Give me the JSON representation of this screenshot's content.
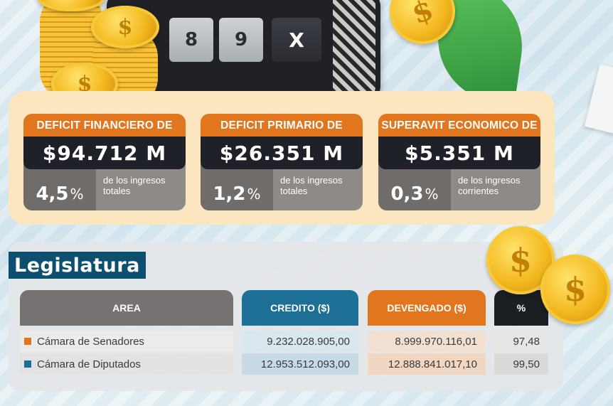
{
  "colors": {
    "orange": "#e2761f",
    "dark": "#1e2228",
    "gray": "#8e8b87",
    "blue": "#1d6f96",
    "title_blue": "#0c4f6e",
    "panel_cream": "#fce6bf"
  },
  "illustration": {
    "calc_keys": [
      "8",
      "9",
      "X"
    ],
    "coin_symbol": "$"
  },
  "summary": {
    "cards": [
      {
        "header": "DEFICIT FINANCIERO DE",
        "amount": "$94.712 M",
        "pct": "4,5",
        "pct_symbol": "%",
        "note": "de los ingresos totales"
      },
      {
        "header": "DEFICIT PRIMARIO DE",
        "amount": "$26.351 M",
        "pct": "1,2",
        "pct_symbol": "%",
        "note": "de los ingresos totales"
      },
      {
        "header": "SUPERAVIT ECONOMICO DE",
        "amount": "$5.351 M",
        "pct": "0,3",
        "pct_symbol": "%",
        "note": "de los ingresos corrientes"
      }
    ]
  },
  "legislatura": {
    "title": "Legislatura",
    "headers": {
      "area": "AREA",
      "credito": "CREDITO ($)",
      "devengado": "DEVENGADO ($)",
      "pct": "%"
    },
    "rows": [
      {
        "area": "Cámara de Senadores",
        "marker_color": "#e2761f",
        "credito": "9.232.028.905,00",
        "devengado": "8.999.970.116,01",
        "pct": "97,48"
      },
      {
        "area": "Cámara de Diputados",
        "marker_color": "#1d6f96",
        "credito": "12.953.512.093,00",
        "devengado": "12.888.841.017,10",
        "pct": "99,50"
      }
    ]
  }
}
